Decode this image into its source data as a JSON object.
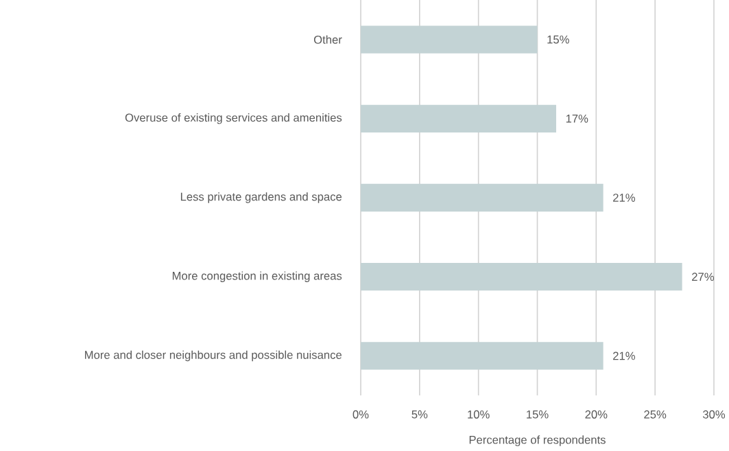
{
  "chart_data": {
    "type": "bar",
    "orientation": "horizontal",
    "xlabel": "Percentage of respondents",
    "categories": [
      "Other",
      "Overuse of existing services and amenities",
      "Less private gardens and space",
      "More congestion in existing areas",
      "More and closer neighbours and possible nuisance"
    ],
    "values": [
      15,
      16.6,
      20.6,
      27.3,
      20.6
    ],
    "value_labels": [
      "15%",
      "17%",
      "21%",
      "27%",
      "21%"
    ],
    "color": "#c3d3d5",
    "xlim": [
      0,
      30
    ],
    "xticks": [
      {
        "value": 0,
        "label": "0%"
      },
      {
        "value": 5,
        "label": "5%"
      },
      {
        "value": 10,
        "label": "10%"
      },
      {
        "value": 15,
        "label": "15%"
      },
      {
        "value": 20,
        "label": "20%"
      },
      {
        "value": 25,
        "label": "25%"
      },
      {
        "value": 30,
        "label": "30%"
      }
    ],
    "grid": "x"
  }
}
